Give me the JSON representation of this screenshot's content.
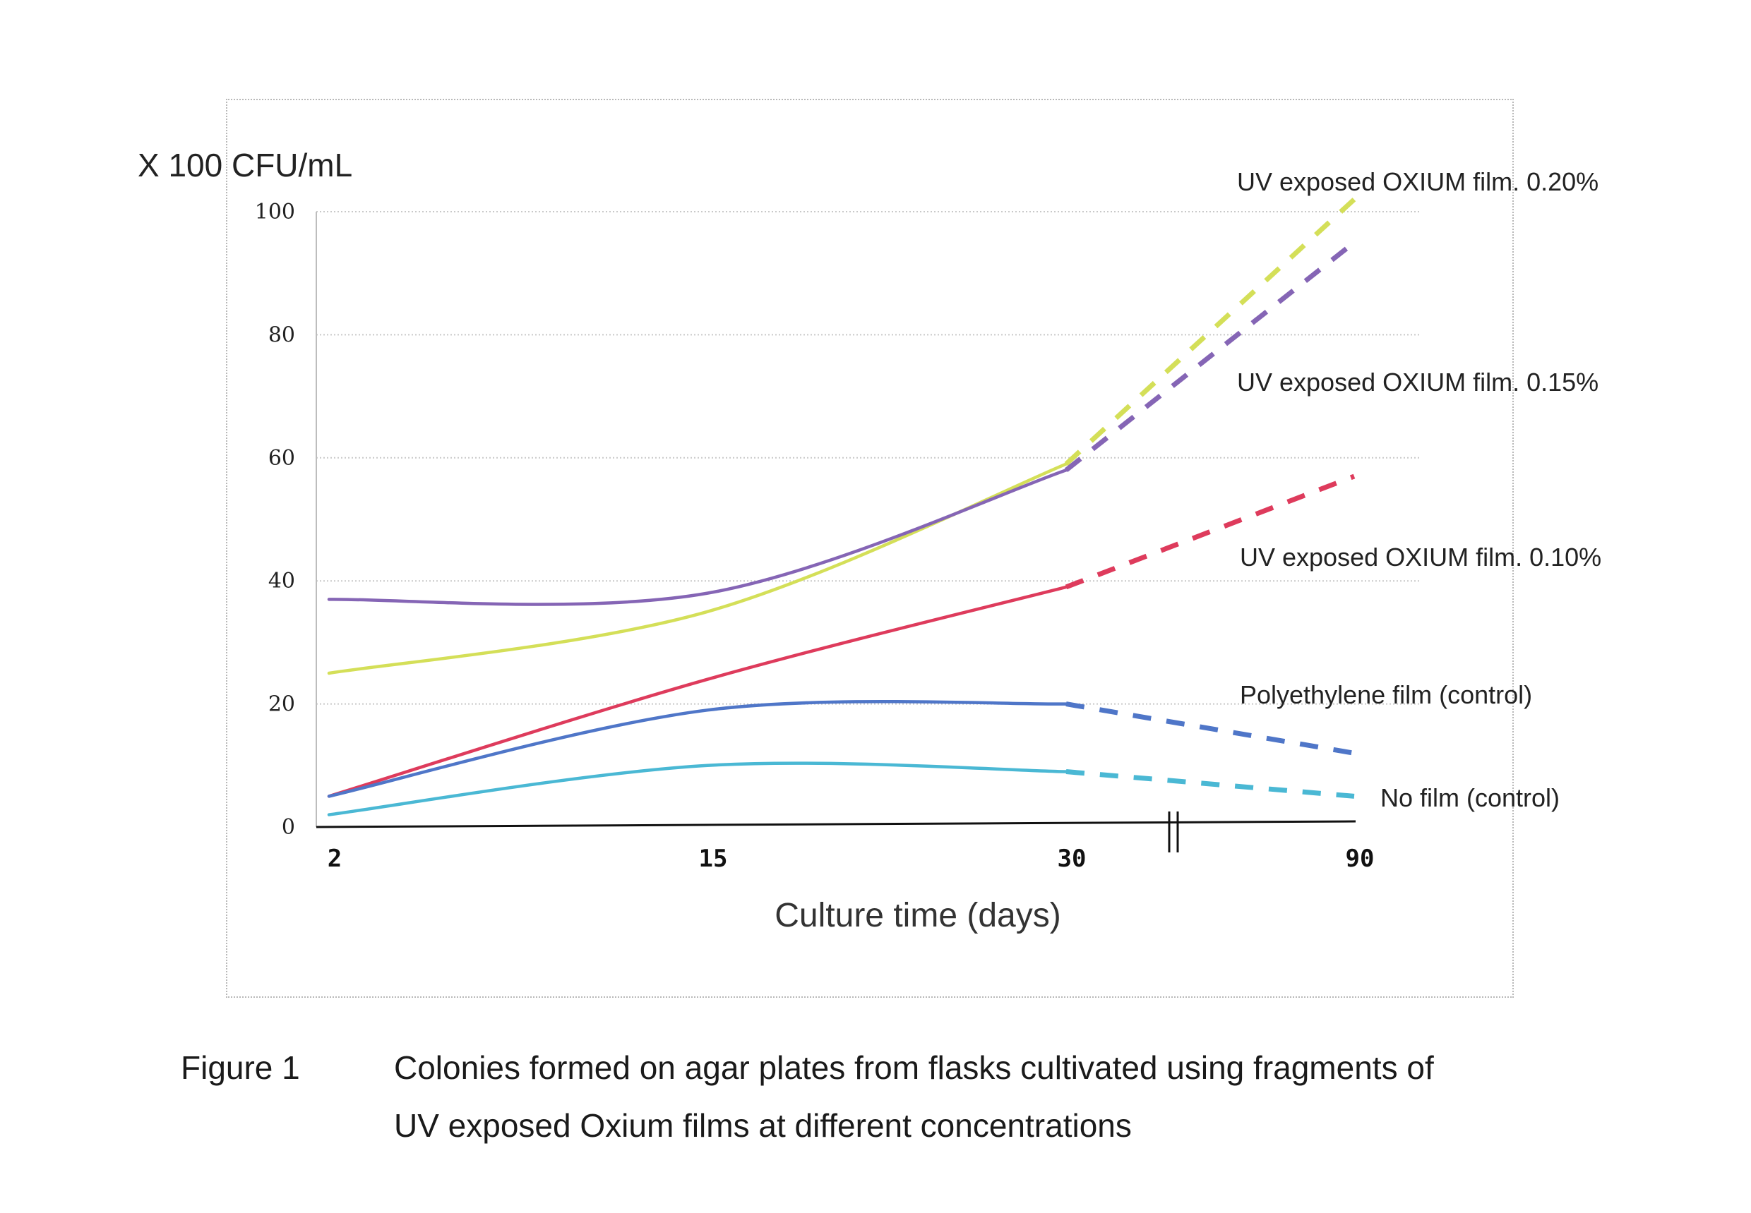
{
  "chart_data": {
    "type": "line",
    "title": "",
    "ylabel": "X 100 CFU/mL",
    "xlabel": "Culture time (days)",
    "x_ticks": [
      "2",
      "15",
      "30",
      "90"
    ],
    "y_ticks": [
      "0",
      "20",
      "40",
      "60",
      "80",
      "100"
    ],
    "ylim": [
      0,
      100
    ],
    "grid": true,
    "axis_break": "between 30 and 90",
    "note": "",
    "series": [
      {
        "name": "UV exposed OXIUM film. 0.20%",
        "color": "#d4df58",
        "solid": [
          {
            "x": 2,
            "y": 25
          },
          {
            "x": 15,
            "y": 35
          },
          {
            "x": 30,
            "y": 59
          }
        ],
        "dashed": [
          {
            "x": 30,
            "y": 59
          },
          {
            "x": 90,
            "y": 102
          }
        ]
      },
      {
        "name": "UV exposed OXIUM film. 0.15%",
        "color": "#8565b5",
        "solid": [
          {
            "x": 2,
            "y": 37
          },
          {
            "x": 15,
            "y": 38
          },
          {
            "x": 30,
            "y": 58
          }
        ],
        "dashed": [
          {
            "x": 30,
            "y": 58
          },
          {
            "x": 90,
            "y": 95
          }
        ]
      },
      {
        "name": "UV exposed OXIUM film. 0.10%",
        "color": "#de3b5c",
        "solid": [
          {
            "x": 2,
            "y": 5
          },
          {
            "x": 15,
            "y": 24
          },
          {
            "x": 30,
            "y": 39
          }
        ],
        "dashed": [
          {
            "x": 30,
            "y": 39
          },
          {
            "x": 90,
            "y": 57
          }
        ]
      },
      {
        "name": "Polyethylene film (control)",
        "color": "#4f76c8",
        "solid": [
          {
            "x": 2,
            "y": 5
          },
          {
            "x": 15,
            "y": 19
          },
          {
            "x": 30,
            "y": 20
          }
        ],
        "dashed": [
          {
            "x": 30,
            "y": 20
          },
          {
            "x": 90,
            "y": 12
          }
        ]
      },
      {
        "name": "No film (control)",
        "color": "#4ab8d4",
        "solid": [
          {
            "x": 2,
            "y": 2
          },
          {
            "x": 15,
            "y": 10
          },
          {
            "x": 30,
            "y": 9
          }
        ],
        "dashed": [
          {
            "x": 30,
            "y": 9
          },
          {
            "x": 90,
            "y": 5
          }
        ]
      }
    ]
  },
  "caption": {
    "label": "Figure 1",
    "line1": "Colonies formed on agar plates from flasks cultivated using fragments of",
    "line2": "UV exposed Oxium films at different concentrations"
  }
}
